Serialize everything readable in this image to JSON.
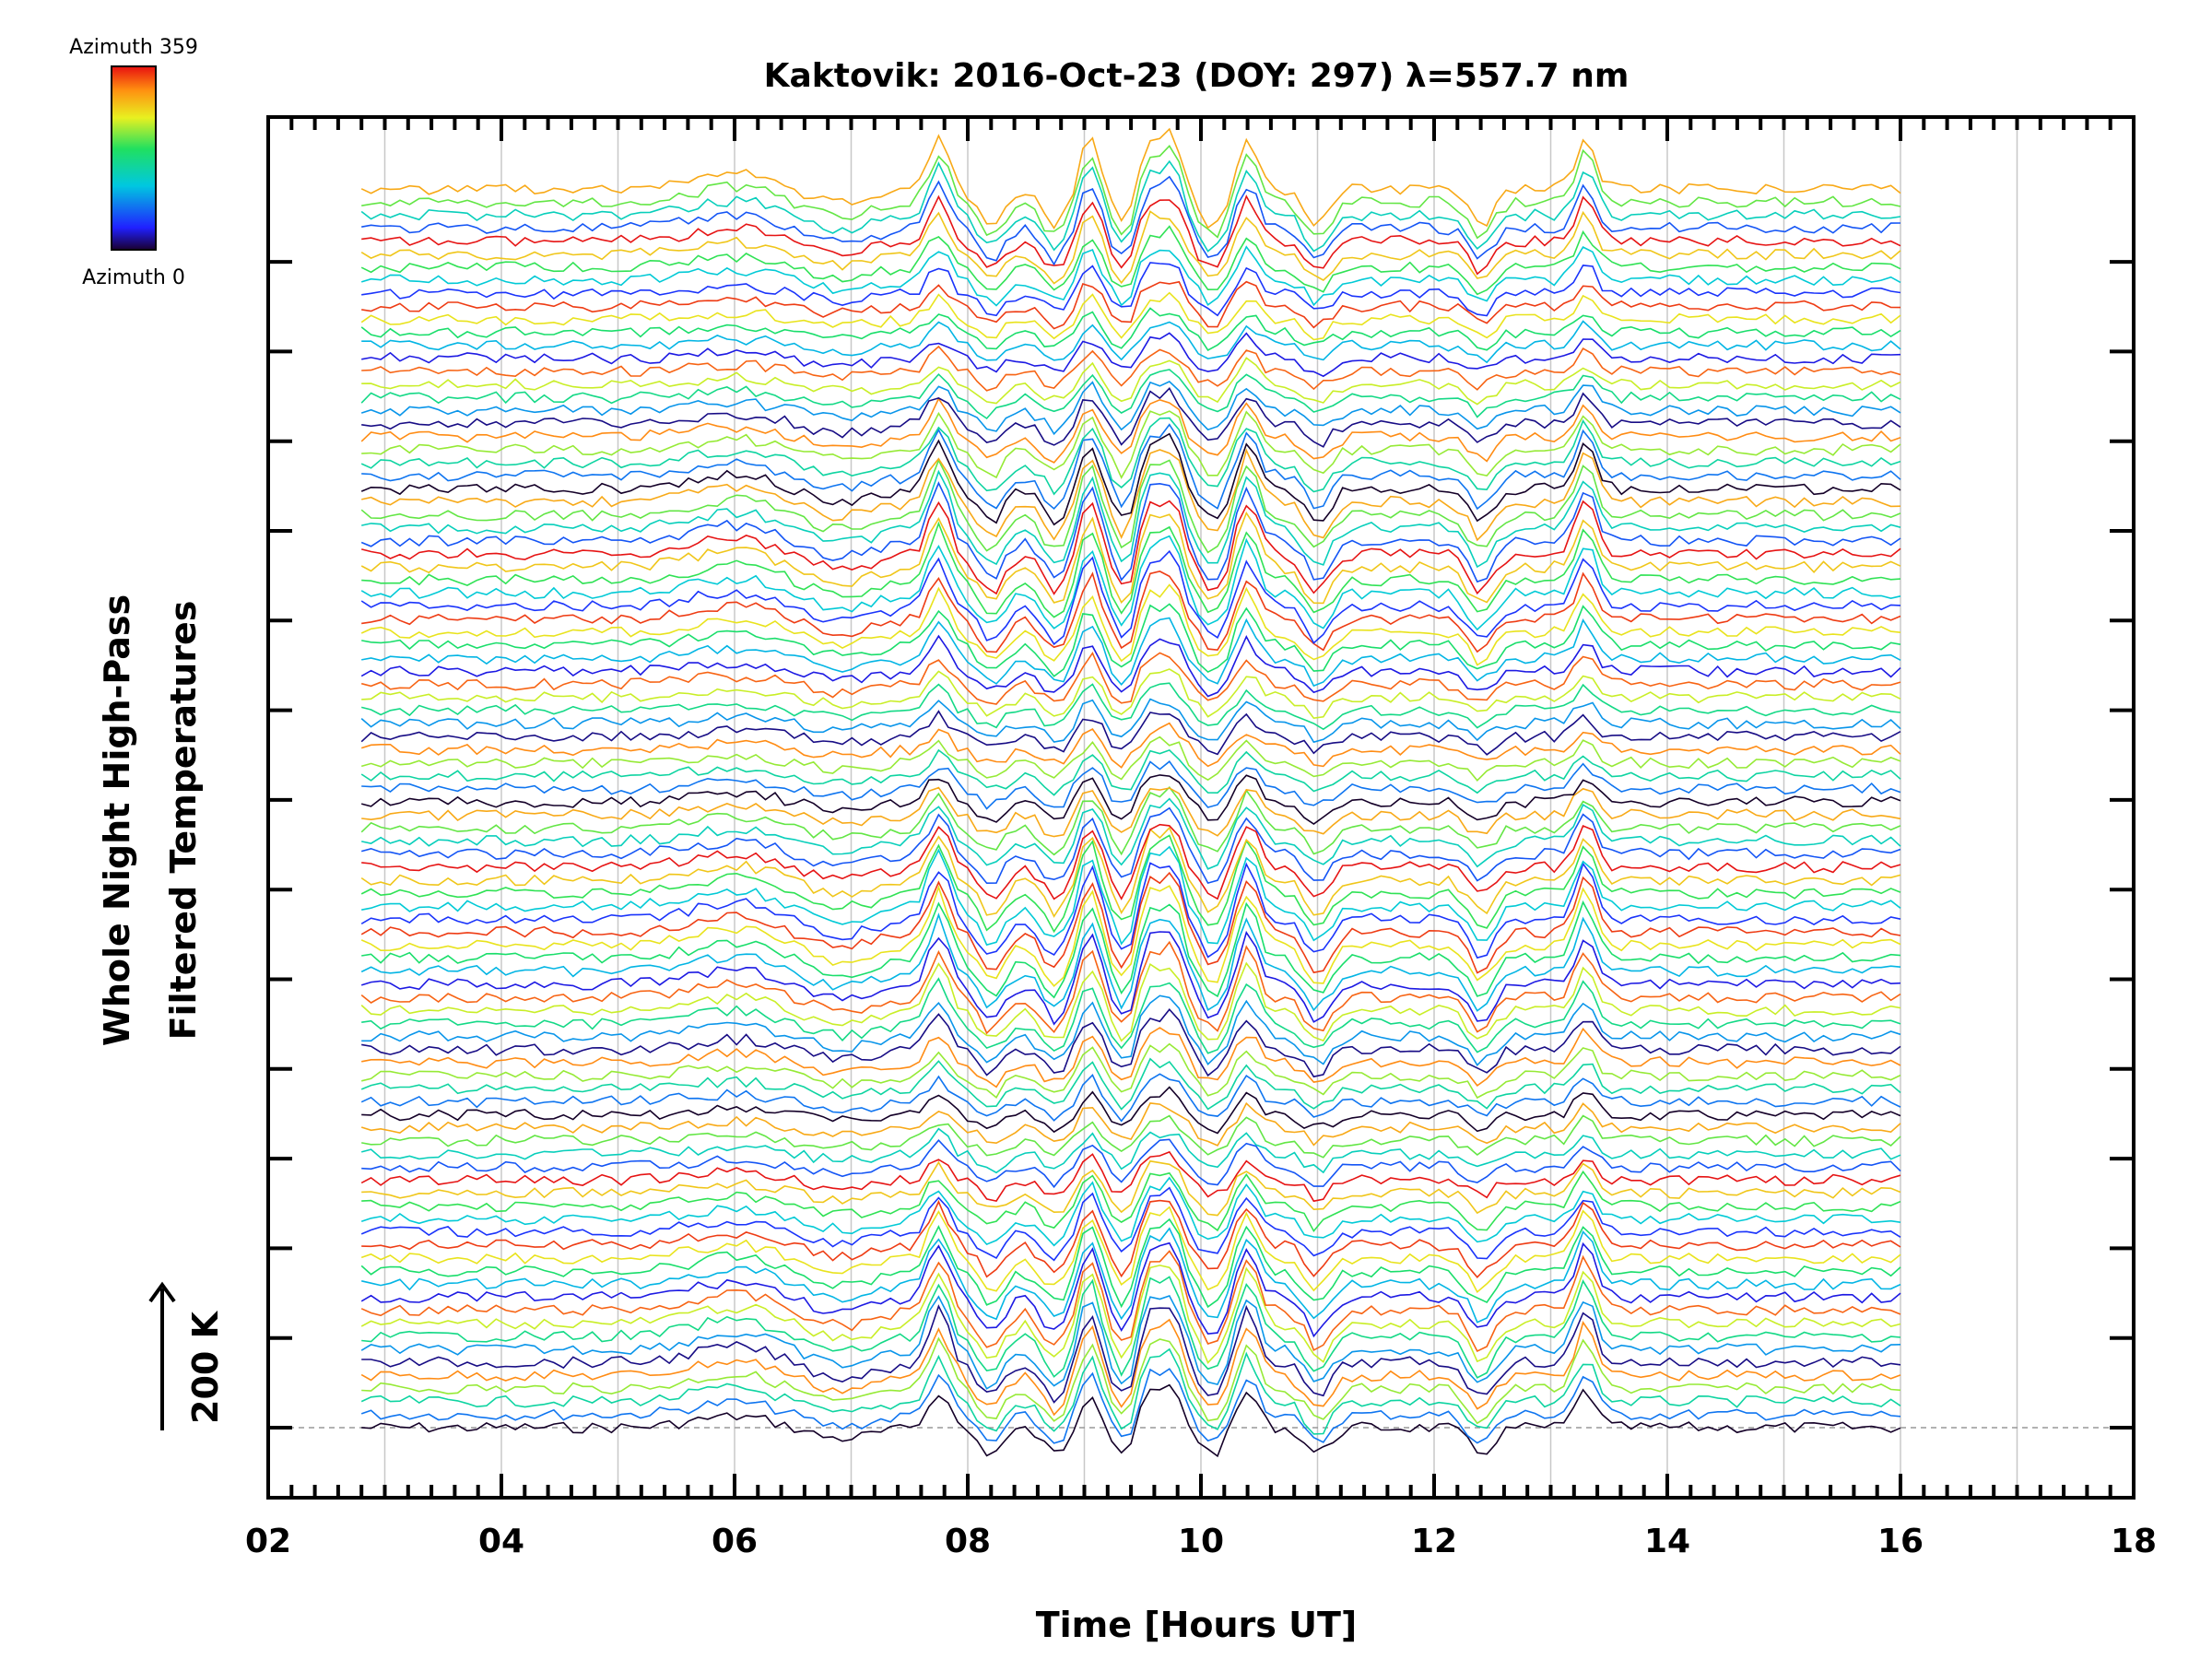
{
  "chart_data": {
    "type": "line",
    "title": "Kaktovik: 2016-Oct-23 (DOY: 297) λ=557.7 nm",
    "xlabel": "Time [Hours UT]",
    "ylabel_line1": "Whole Night High-Pass",
    "ylabel_line2": "Filtered Temperatures",
    "scale_bar_label": "200 K",
    "xlim": [
      2,
      18
    ],
    "x_ticks": [
      "02",
      "04",
      "06",
      "08",
      "10",
      "12",
      "14",
      "16",
      "18"
    ],
    "data_time_range_hours": [
      2.8,
      16.0
    ],
    "series_count": 96,
    "y_major_tick_count": 14,
    "colorbar": {
      "top_label": "Azimuth 359",
      "bottom_label": "Azimuth 0",
      "colormap": "rainbow",
      "range": [
        0,
        359
      ]
    },
    "common_features": {
      "peak_times_hours": [
        7.75,
        9.05,
        9.55,
        9.75,
        10.4,
        13.3
      ],
      "trough_times_hours": [
        8.2,
        8.75,
        9.35,
        10.1,
        11.0,
        12.4
      ]
    }
  },
  "colors": {
    "axis": "#000000",
    "grid": "#c8c8c8",
    "baseline": "#999999",
    "background": "#ffffff"
  }
}
